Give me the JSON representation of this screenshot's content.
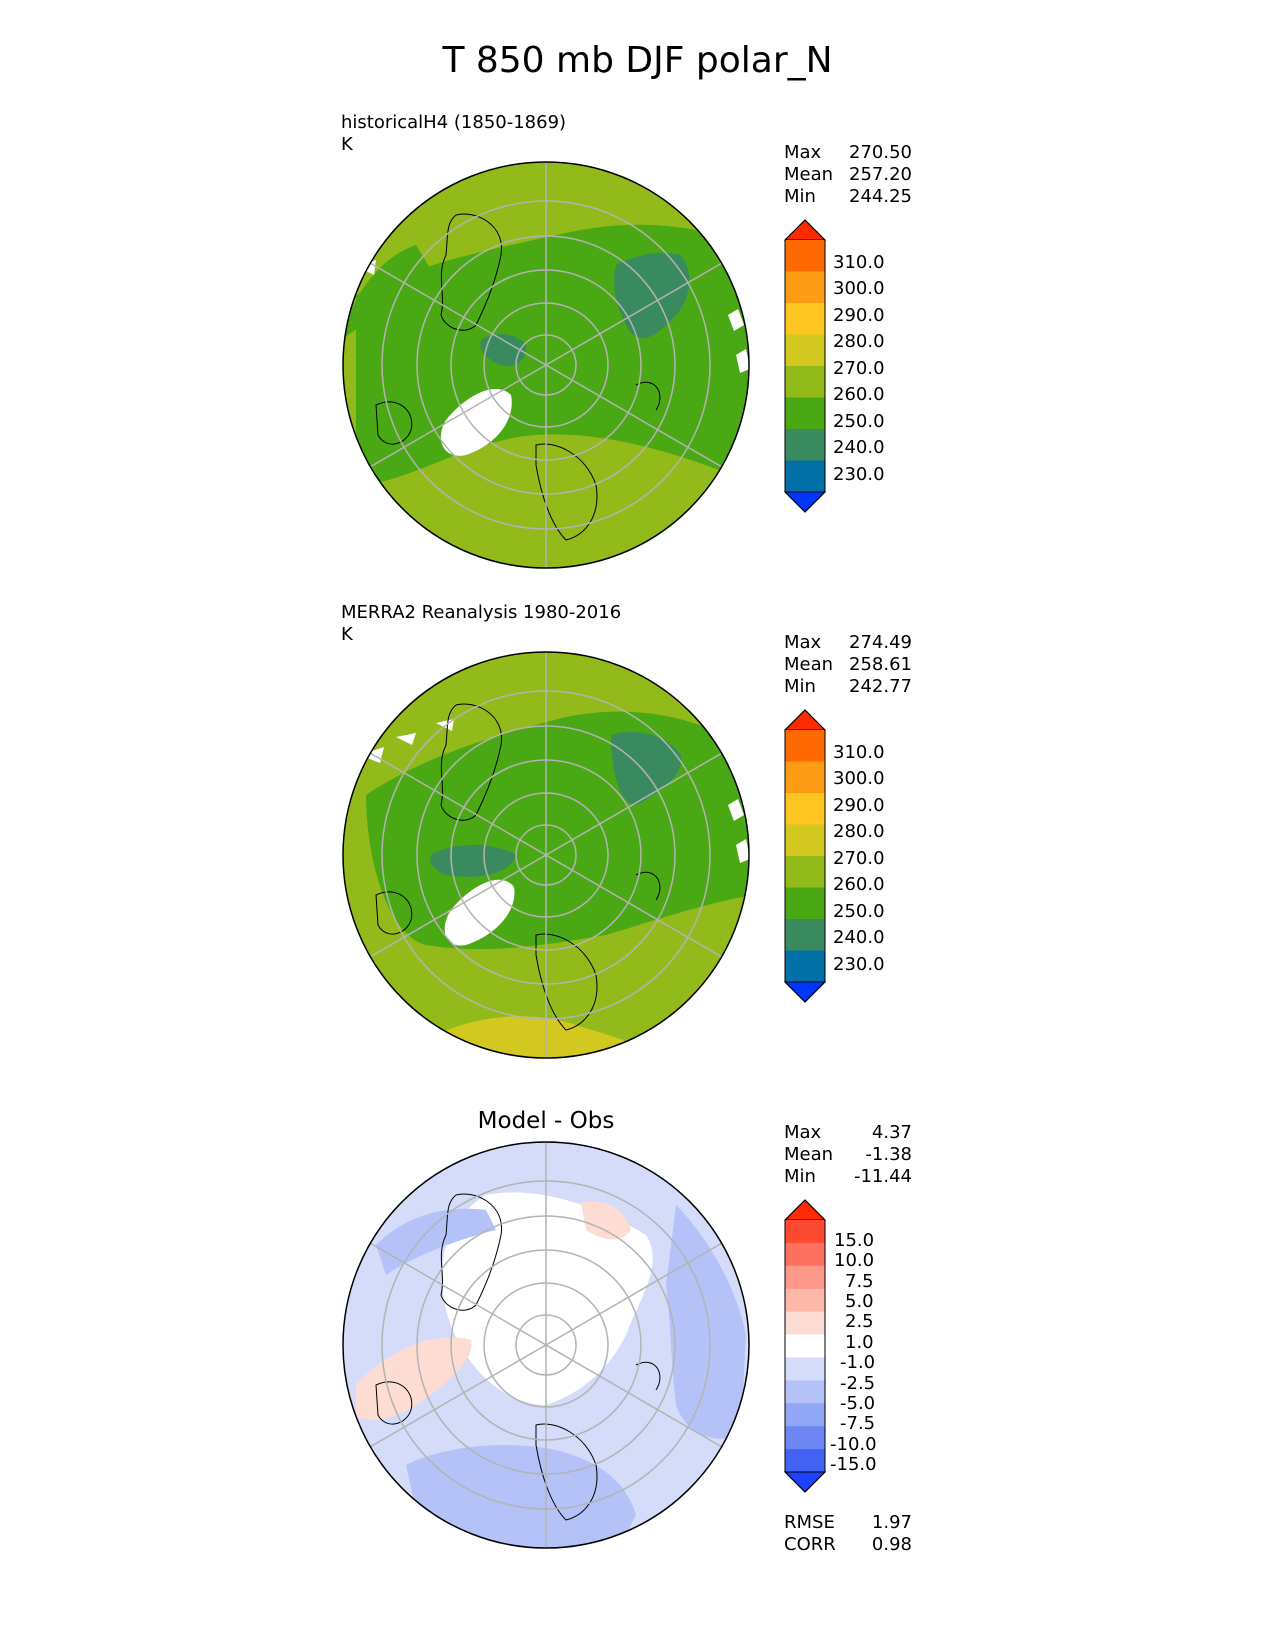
{
  "figure": {
    "title": "T 850 mb DJF polar_N"
  },
  "panels": [
    {
      "id": "test",
      "title_line1": "historicalH4 (1850-1869)",
      "title_line2": "K",
      "stats": [
        {
          "label": "Max",
          "value": "270.50"
        },
        {
          "label": "Mean",
          "value": "257.20"
        },
        {
          "label": "Min",
          "value": "244.25"
        }
      ],
      "colorbar": {
        "labels": [
          "310.0",
          "300.0",
          "290.0",
          "280.0",
          "270.0",
          "260.0",
          "250.0",
          "240.0",
          "230.0"
        ],
        "colors": [
          "#fe2a00",
          "#fe6a00",
          "#fe9b14",
          "#fec41f",
          "#d2c81f",
          "#93ba1b",
          "#4aa815",
          "#3a8a60",
          "#0070a6",
          "#0037ff"
        ]
      }
    },
    {
      "id": "reference",
      "title_line1": "MERRA2 Reanalysis 1980-2016",
      "title_line2": "K",
      "stats": [
        {
          "label": "Max",
          "value": "274.49"
        },
        {
          "label": "Mean",
          "value": "258.61"
        },
        {
          "label": "Min",
          "value": "242.77"
        }
      ],
      "colorbar": {
        "labels": [
          "310.0",
          "300.0",
          "290.0",
          "280.0",
          "270.0",
          "260.0",
          "250.0",
          "240.0",
          "230.0"
        ],
        "colors": [
          "#fe2a00",
          "#fe6a00",
          "#fe9b14",
          "#fec41f",
          "#d2c81f",
          "#93ba1b",
          "#4aa815",
          "#3a8a60",
          "#0070a6",
          "#0037ff"
        ]
      }
    },
    {
      "id": "difference",
      "title_center": "Model - Obs",
      "stats": [
        {
          "label": "Max",
          "value": "4.37"
        },
        {
          "label": "Mean",
          "value": "-1.38"
        },
        {
          "label": "Min",
          "value": "-11.44"
        }
      ],
      "colorbar": {
        "labels": [
          "15.0",
          "10.0",
          "7.5",
          "5.0",
          "2.5",
          "1.0",
          "-1.0",
          "-2.5",
          "-5.0",
          "-7.5",
          "-10.0",
          "-15.0"
        ],
        "colors": [
          "#fe2a00",
          "#fe4a30",
          "#fe7060",
          "#fe9888",
          "#feb8aa",
          "#fddcd4",
          "#ffffff",
          "#d4dcfa",
          "#b4c2f8",
          "#92a6f6",
          "#6e86f4",
          "#4262f4",
          "#1e40ff"
        ]
      },
      "metrics": [
        {
          "label": "RMSE",
          "value": "1.97"
        },
        {
          "label": "CORR",
          "value": "0.98"
        }
      ]
    }
  ]
}
